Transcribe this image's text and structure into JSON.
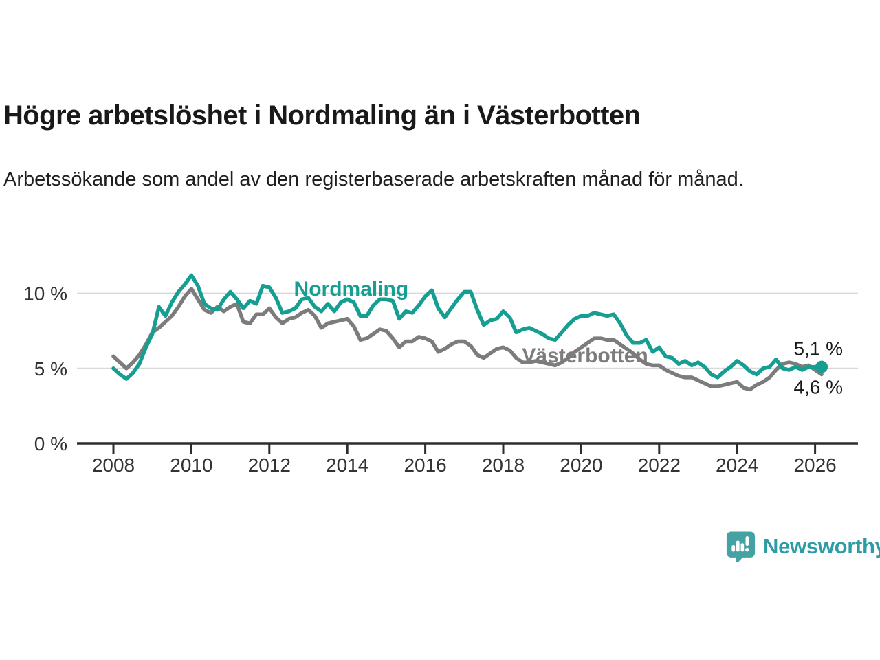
{
  "header": {
    "title": "Högre arbetslöshet i Nordmaling än i Västerbotten",
    "subtitle": "Arbetssökande som andel av den registerbaserade arbetskraften månad för månad."
  },
  "colors": {
    "nordmaling": "#159E91",
    "vasterbotten": "#7C7C7C",
    "grid": "#D9D9D9",
    "axis": "#2D2D2D",
    "tick_text": "#333333",
    "annotation_text": "#1A1A1A",
    "logo": "#44A1A4",
    "brand_text": "#2E9CA4"
  },
  "chart_data": {
    "type": "line",
    "title": "Arbetssökande som andel av den registerbaserade arbetskraften, månad för månad",
    "xlabel": "",
    "ylabel": "",
    "x_unit": "decimal year, monthly data",
    "x_start": 2008.0,
    "x_step": 0.16667,
    "x_ticks": [
      2008,
      2010,
      2012,
      2014,
      2016,
      2018,
      2020,
      2022,
      2024,
      2026
    ],
    "y_ticks": [
      {
        "value": 0,
        "label": "0 %"
      },
      {
        "value": 5,
        "label": "5 %"
      },
      {
        "value": 10,
        "label": "10 %"
      }
    ],
    "ylim": [
      0,
      11.5
    ],
    "xlim": [
      2007.1,
      2027.1
    ],
    "grid": "horizontal",
    "legend": "inline-labels",
    "series": [
      {
        "name": "Nordmaling",
        "color": "nordmaling",
        "end_label": "5,1 %",
        "end_value": 5.1,
        "end_dot": true,
        "label_anchor": {
          "x": 2014.1,
          "y": 9.85
        },
        "values": [
          5.0,
          4.6,
          4.3,
          4.7,
          5.3,
          6.4,
          7.3,
          9.1,
          8.5,
          9.4,
          10.1,
          10.6,
          11.2,
          10.5,
          9.3,
          9.0,
          8.9,
          9.6,
          10.1,
          9.6,
          9.0,
          9.5,
          9.3,
          10.5,
          10.4,
          9.7,
          8.7,
          8.8,
          9.0,
          9.6,
          9.7,
          9.1,
          8.8,
          9.3,
          8.8,
          9.4,
          9.6,
          9.4,
          8.5,
          8.5,
          9.2,
          9.6,
          9.6,
          9.5,
          8.3,
          8.8,
          8.7,
          9.2,
          9.8,
          10.2,
          9.0,
          8.4,
          9.0,
          9.6,
          10.1,
          10.1,
          8.9,
          7.9,
          8.2,
          8.3,
          8.8,
          8.4,
          7.4,
          7.6,
          7.7,
          7.5,
          7.3,
          7.0,
          6.9,
          7.4,
          7.9,
          8.3,
          8.5,
          8.5,
          8.7,
          8.6,
          8.5,
          8.6,
          8.0,
          7.2,
          6.7,
          6.7,
          6.9,
          6.1,
          6.4,
          5.8,
          5.7,
          5.3,
          5.5,
          5.2,
          5.4,
          5.1,
          4.6,
          4.4,
          4.8,
          5.1,
          5.5,
          5.2,
          4.8,
          4.6,
          5.0,
          5.1,
          5.6,
          5.0,
          4.9,
          5.1,
          4.9,
          5.1,
          5.1,
          5.1
        ]
      },
      {
        "name": "Västerbotten",
        "color": "vasterbotten",
        "end_label": "4,6 %",
        "end_value": 4.6,
        "end_dot": false,
        "label_anchor": {
          "x": 2020.1,
          "y": 5.4
        },
        "values": [
          5.8,
          5.4,
          5.0,
          5.4,
          5.9,
          6.6,
          7.4,
          7.7,
          8.1,
          8.5,
          9.1,
          9.8,
          10.3,
          9.6,
          8.9,
          8.7,
          9.1,
          8.8,
          9.1,
          9.3,
          8.1,
          8.0,
          8.6,
          8.6,
          9.0,
          8.4,
          8.0,
          8.3,
          8.4,
          8.7,
          8.9,
          8.5,
          7.7,
          8.0,
          8.1,
          8.2,
          8.3,
          7.8,
          6.9,
          7.0,
          7.3,
          7.6,
          7.5,
          7.0,
          6.4,
          6.8,
          6.8,
          7.1,
          7.0,
          6.8,
          6.1,
          6.3,
          6.6,
          6.8,
          6.8,
          6.5,
          5.9,
          5.7,
          6.0,
          6.3,
          6.4,
          6.2,
          5.7,
          5.4,
          5.4,
          5.5,
          5.4,
          5.3,
          5.2,
          5.4,
          5.7,
          6.1,
          6.4,
          6.7,
          7.0,
          7.0,
          6.9,
          6.9,
          6.6,
          6.3,
          6.0,
          5.6,
          5.3,
          5.2,
          5.2,
          4.9,
          4.7,
          4.5,
          4.4,
          4.4,
          4.2,
          4.0,
          3.8,
          3.8,
          3.9,
          4.0,
          4.1,
          3.7,
          3.6,
          3.9,
          4.1,
          4.4,
          4.9,
          5.3,
          5.4,
          5.3,
          5.1,
          5.2,
          4.9,
          4.6
        ]
      }
    ]
  },
  "footer": {
    "brand": "Newsworthy",
    "logo_icon": "bar-chart-speech-bubble"
  }
}
